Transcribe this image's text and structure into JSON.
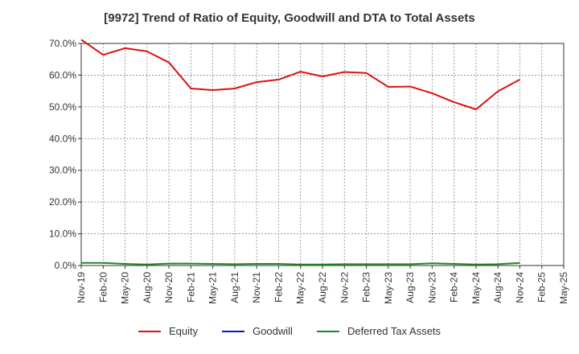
{
  "colors": {
    "equity": "#dd1111",
    "goodwill": "#1111cc",
    "dta": "#228822",
    "grid": "#888888",
    "axis": "#333333"
  },
  "chart_data": {
    "type": "line",
    "title": "[9972]  Trend of Ratio of Equity, Goodwill and DTA to Total Assets",
    "xlabel": "",
    "ylabel": "",
    "ylim": [
      0,
      70
    ],
    "yticks": [
      "0.0%",
      "10.0%",
      "20.0%",
      "30.0%",
      "40.0%",
      "50.0%",
      "60.0%",
      "70.0%"
    ],
    "ytick_values": [
      0,
      10,
      20,
      30,
      40,
      50,
      60,
      70
    ],
    "categories": [
      "Nov-19",
      "Feb-20",
      "May-20",
      "Aug-20",
      "Nov-20",
      "Feb-21",
      "May-21",
      "Aug-21",
      "Nov-21",
      "Feb-22",
      "May-22",
      "Aug-22",
      "Nov-22",
      "Feb-23",
      "May-23",
      "Aug-23",
      "Nov-23",
      "Feb-24",
      "May-24",
      "Aug-24",
      "Nov-24",
      "Feb-25",
      "May-25"
    ],
    "series": [
      {
        "name": "Equity",
        "color_key": "equity",
        "values": [
          71.2,
          66.4,
          68.5,
          67.5,
          64.0,
          55.8,
          55.3,
          55.8,
          57.8,
          58.6,
          61.1,
          59.6,
          61.0,
          60.7,
          56.3,
          56.4,
          54.3,
          51.5,
          49.2,
          54.9,
          58.6,
          null,
          null
        ]
      },
      {
        "name": "Goodwill",
        "color_key": "goodwill",
        "values": [
          null,
          null,
          null,
          null,
          null,
          null,
          null,
          null,
          null,
          null,
          null,
          null,
          null,
          null,
          null,
          null,
          null,
          null,
          null,
          null,
          null,
          null,
          null
        ]
      },
      {
        "name": "Deferred Tax Assets",
        "color_key": "dta",
        "values": [
          0.8,
          0.8,
          0.5,
          0.3,
          0.6,
          0.6,
          0.5,
          0.4,
          0.5,
          0.5,
          0.3,
          0.3,
          0.4,
          0.4,
          0.4,
          0.4,
          0.7,
          0.5,
          0.3,
          0.4,
          0.8,
          null,
          null
        ]
      }
    ],
    "legend_position": "bottom"
  }
}
